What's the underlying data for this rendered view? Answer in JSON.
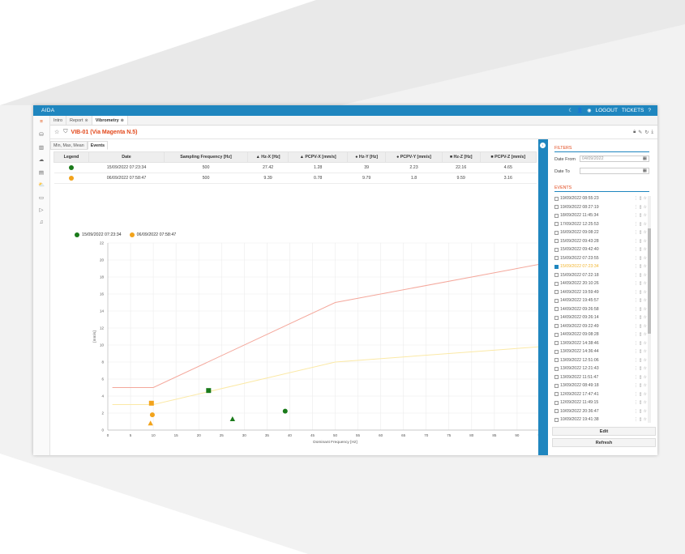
{
  "app": {
    "brand": "AIDA"
  },
  "topbar": {
    "logout": "LOGOUT",
    "tickets": "TICKETS",
    "help": "?"
  },
  "tabs": [
    {
      "label": "Intro"
    },
    {
      "label": "Report"
    },
    {
      "label": "Vibrometry"
    }
  ],
  "page": {
    "title": "VIB-01 (Via Magenta N.5)"
  },
  "subtabs": [
    {
      "label": "Min, Max, Mean"
    },
    {
      "label": "Events"
    }
  ],
  "table": {
    "headers": [
      "Legend",
      "Date",
      "Sampling Frequency [Hz]",
      "▲ Hz-X [Hz]",
      "▲ PCPV-X [mm/s]",
      "● Hz-Y [Hz]",
      "● PCPV-Y [mm/s]",
      "■ Hz-Z [Hz]",
      "■ PCPV-Z [mm/s]"
    ],
    "rows": [
      {
        "color": "#1a7a1a",
        "date": "15/09/2022 07:23:34",
        "freq": "500",
        "hzx": "27.42",
        "pcpvx": "1.28",
        "hzy": "39",
        "pcpvy": "2.23",
        "hzz": "22.16",
        "pcpvz": "4.65"
      },
      {
        "color": "#f2a31b",
        "date": "06/09/2022 07:58:47",
        "freq": "500",
        "hzx": "9.39",
        "pcpvx": "0.78",
        "hzy": "9.79",
        "pcpvy": "1.8",
        "hzz": "9.59",
        "pcpvz": "3.16"
      }
    ]
  },
  "chart_legend": [
    {
      "label": "15/09/2022 07:23:34",
      "color": "#1a7a1a"
    },
    {
      "label": "06/09/2022 07:58:47",
      "color": "#f2a31b"
    }
  ],
  "chart_data": {
    "type": "scatter",
    "xlabel": "Dominant Frequency [Hz]",
    "ylabel": "[mm/s]",
    "xlim": [
      0,
      100
    ],
    "ylim": [
      0,
      22
    ],
    "xticks": [
      0,
      5,
      10,
      15,
      20,
      25,
      30,
      35,
      40,
      45,
      50,
      55,
      60,
      65,
      70,
      75,
      80,
      85,
      90,
      95,
      100
    ],
    "yticks": [
      0,
      2,
      4,
      6,
      8,
      10,
      12,
      14,
      16,
      18,
      20,
      22
    ],
    "grid": true,
    "limit_lines": [
      {
        "color": "#f4a79b",
        "points": [
          [
            1,
            5
          ],
          [
            10,
            5
          ],
          [
            50,
            15
          ],
          [
            100,
            20
          ]
        ]
      },
      {
        "color": "#fbe9a6",
        "points": [
          [
            1,
            3
          ],
          [
            10,
            3
          ],
          [
            50,
            8
          ],
          [
            100,
            10
          ]
        ]
      }
    ],
    "series": [
      {
        "color": "#1a7a1a",
        "points": [
          {
            "x": 27.42,
            "y": 1.28,
            "marker": "triangle"
          },
          {
            "x": 39,
            "y": 2.23,
            "marker": "circle"
          },
          {
            "x": 22.16,
            "y": 4.65,
            "marker": "square"
          }
        ]
      },
      {
        "color": "#f2a31b",
        "points": [
          {
            "x": 9.39,
            "y": 0.78,
            "marker": "triangle"
          },
          {
            "x": 9.79,
            "y": 1.8,
            "marker": "circle"
          },
          {
            "x": 9.59,
            "y": 3.16,
            "marker": "square"
          }
        ]
      }
    ]
  },
  "filters": {
    "title": "FILTERS",
    "date_from_label": "Date From",
    "date_from_value": "04/09/2022",
    "date_to_label": "Date To",
    "date_to_value": ""
  },
  "events": {
    "title": "EVENTS",
    "items": [
      {
        "date": "19/09/2022 08:55:23",
        "checked": false
      },
      {
        "date": "19/09/2022 08:27:19",
        "checked": false
      },
      {
        "date": "18/09/2022 11:45:34",
        "checked": false
      },
      {
        "date": "17/09/2022 12:25:53",
        "checked": false
      },
      {
        "date": "16/09/2022 09:08:22",
        "checked": false
      },
      {
        "date": "15/09/2022 09:43:28",
        "checked": false
      },
      {
        "date": "15/09/2022 09:42:40",
        "checked": false
      },
      {
        "date": "15/09/2022 07:23:55",
        "checked": false
      },
      {
        "date": "15/09/2022 07:23:34",
        "checked": true
      },
      {
        "date": "15/09/2022 07:22:18",
        "checked": false
      },
      {
        "date": "14/09/2022 20:10:26",
        "checked": false
      },
      {
        "date": "14/09/2022 19:59:49",
        "checked": false
      },
      {
        "date": "14/09/2022 19:45:57",
        "checked": false
      },
      {
        "date": "14/09/2022 09:26:58",
        "checked": false
      },
      {
        "date": "14/09/2022 09:26:14",
        "checked": false
      },
      {
        "date": "14/09/2022 09:22:49",
        "checked": false
      },
      {
        "date": "14/09/2022 09:08:28",
        "checked": false
      },
      {
        "date": "13/09/2022 14:38:46",
        "checked": false
      },
      {
        "date": "13/09/2022 14:36:44",
        "checked": false
      },
      {
        "date": "13/09/2022 12:51:06",
        "checked": false
      },
      {
        "date": "13/09/2022 12:21:43",
        "checked": false
      },
      {
        "date": "13/09/2022 11:51:47",
        "checked": false
      },
      {
        "date": "13/09/2022 08:49:18",
        "checked": false
      },
      {
        "date": "12/09/2022 17:47:41",
        "checked": false
      },
      {
        "date": "12/09/2022 11:49:15",
        "checked": false
      },
      {
        "date": "10/09/2022 20:36:47",
        "checked": false
      },
      {
        "date": "10/09/2022 19:41:38",
        "checked": false
      }
    ]
  },
  "buttons": {
    "edit": "Edit",
    "refresh": "Refresh"
  }
}
